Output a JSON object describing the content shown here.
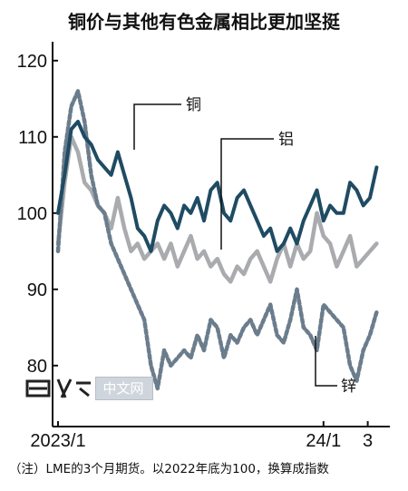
{
  "title": "铜价与其他有色金属相比更加坚挺",
  "note": "（注）LME的3个月期货。以2022年底为100，换算成指数",
  "watermark": {
    "text": "中文网"
  },
  "colors": {
    "copper": "#1f4b63",
    "aluminum": "#a9abae",
    "zinc": "#6b7d8d",
    "axis": "#111111"
  },
  "chart_data": {
    "type": "line",
    "title": "铜价与其他有色金属相比更加坚挺",
    "xlabel": "",
    "ylabel": "",
    "ylim": [
      72,
      122
    ],
    "yticks": [
      80,
      90,
      100,
      110,
      120
    ],
    "xtick_labels": [
      {
        "label": "2023/1",
        "x": 0
      },
      {
        "label": "24/1",
        "x": 12
      },
      {
        "label": "3",
        "x": 14
      }
    ],
    "x_unit": "months since 2023/1",
    "grid": false,
    "legend": "inline-labels",
    "series": [
      {
        "name": "铜",
        "style": "solid",
        "x": [
          0,
          0.3,
          0.6,
          0.9,
          1.2,
          1.5,
          1.8,
          2.1,
          2.4,
          2.7,
          3.0,
          3.3,
          3.6,
          3.9,
          4.2,
          4.5,
          4.8,
          5.1,
          5.4,
          5.7,
          6.0,
          6.3,
          6.6,
          6.9,
          7.2,
          7.5,
          7.8,
          8.1,
          8.4,
          8.7,
          9.0,
          9.3,
          9.6,
          9.9,
          10.2,
          10.5,
          10.8,
          11.1,
          11.4,
          11.7,
          12.0,
          12.3,
          12.6,
          12.9,
          13.2,
          13.5,
          13.8,
          14.1,
          14.4
        ],
        "values": [
          100,
          105,
          111,
          112,
          110,
          109,
          107,
          106,
          105,
          108,
          105,
          102,
          98,
          97,
          95,
          99,
          101,
          100,
          98,
          101,
          100,
          102,
          99,
          103,
          104,
          100,
          99,
          102,
          103,
          101,
          99,
          97,
          98,
          95,
          96,
          98,
          96,
          99,
          101,
          103,
          99,
          101,
          100,
          100,
          104,
          103,
          101,
          102,
          106
        ]
      },
      {
        "name": "铝",
        "style": "solid",
        "x": [
          0,
          0.3,
          0.6,
          0.9,
          1.2,
          1.5,
          1.8,
          2.1,
          2.4,
          2.7,
          3.0,
          3.3,
          3.6,
          3.9,
          4.2,
          4.5,
          4.8,
          5.1,
          5.4,
          5.7,
          6.0,
          6.3,
          6.6,
          6.9,
          7.2,
          7.5,
          7.8,
          8.1,
          8.4,
          8.7,
          9.0,
          9.3,
          9.6,
          9.9,
          10.2,
          10.5,
          10.8,
          11.1,
          11.4,
          11.7,
          12.0,
          12.3,
          12.6,
          12.9,
          13.2,
          13.5,
          13.8,
          14.1,
          14.4
        ],
        "values": [
          96,
          104,
          110,
          108,
          104,
          103,
          101,
          100,
          98,
          102,
          98,
          95,
          96,
          94,
          95,
          96,
          94,
          96,
          93,
          95,
          97,
          94,
          95,
          93,
          94,
          92,
          91,
          93,
          92,
          94,
          95,
          93,
          91,
          94,
          96,
          93,
          96,
          94,
          95,
          100,
          97,
          96,
          93,
          95,
          97,
          93,
          94,
          95,
          96
        ]
      },
      {
        "name": "锌",
        "style": "dashed",
        "x": [
          0,
          0.3,
          0.6,
          0.9,
          1.2,
          1.5,
          1.8,
          2.1,
          2.4,
          2.7,
          3.0,
          3.3,
          3.6,
          3.9,
          4.2,
          4.5,
          4.8,
          5.1,
          5.4,
          5.7,
          6.0,
          6.3,
          6.6,
          6.9,
          7.2,
          7.5,
          7.8,
          8.1,
          8.4,
          8.7,
          9.0,
          9.3,
          9.6,
          9.9,
          10.2,
          10.5,
          10.8,
          11.1,
          11.4,
          11.7,
          12.0,
          12.3,
          12.6,
          12.9,
          13.2,
          13.5,
          13.8,
          14.1,
          14.4
        ],
        "values": [
          95,
          108,
          114,
          116,
          112,
          105,
          101,
          100,
          96,
          94,
          92,
          90,
          88,
          86,
          80,
          77,
          82,
          80,
          81,
          82,
          81,
          84,
          82,
          86,
          85,
          81,
          84,
          83,
          85,
          86,
          84,
          86,
          88,
          84,
          83,
          86,
          90,
          85,
          84,
          82,
          88,
          87,
          86,
          85,
          80,
          78,
          82,
          84,
          87
        ]
      }
    ],
    "annotations": [
      "铜",
      "铝",
      "锌"
    ]
  }
}
